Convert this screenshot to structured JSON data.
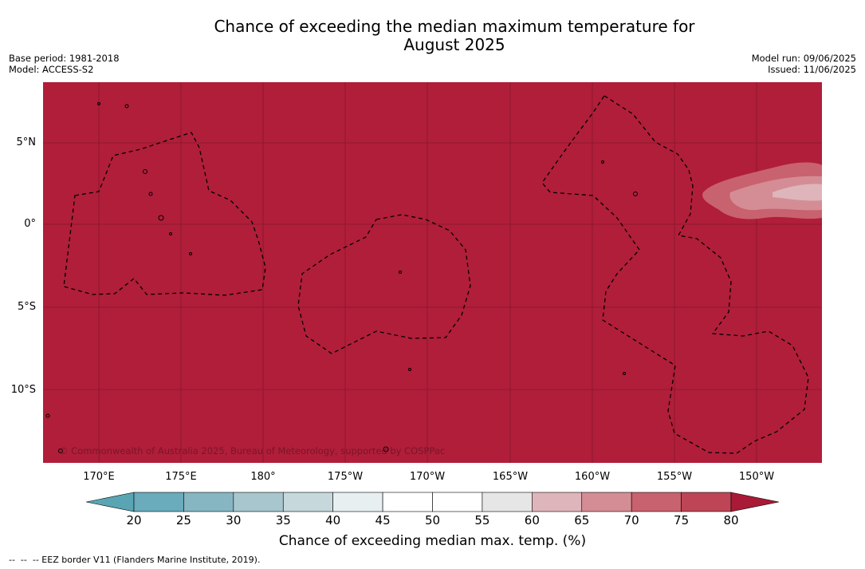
{
  "title": "Chance of exceeding the median maximum temperature for August 2025",
  "title_lines": [
    "Chance of exceeding the median maximum temperature for",
    "August 2025"
  ],
  "meta_left": [
    "Base period: 1981-2018",
    "Model: ACCESS-S2"
  ],
  "meta_right": [
    "Model run: 09/06/2025",
    "Issued: 11/06/2025"
  ],
  "map": {
    "copyright": "© Commonwealth of Australia 2025, Bureau of Meteorology, supported by COSPPac",
    "background_color": "#b01e3a",
    "lat_labels": [
      "5°N",
      "0°",
      "5°S",
      "10°S"
    ],
    "lon_labels": [
      "170°E",
      "175°E",
      "180°",
      "175°W",
      "170°W",
      "165°W",
      "160°W",
      "155°W",
      "150°W"
    ]
  },
  "colorbar": {
    "ticks": [
      "20",
      "25",
      "30",
      "35",
      "40",
      "45",
      "50",
      "55",
      "60",
      "65",
      "70",
      "75",
      "80"
    ],
    "colors": [
      "#6aabbc",
      "#87b6c3",
      "#a7c6cd",
      "#c6d8dc",
      "#e8eff1",
      "#ffffff",
      "#ffffff",
      "#e6e6e6",
      "#deb5bb",
      "#d48d95",
      "#c8626e",
      "#be4556"
    ],
    "under_color": "#5aa5b4",
    "over_color": "#a81a36",
    "label": "Chance of exceeding median max. temp. (%)"
  },
  "footnote": "--  --  -- EEZ border V11 (Flanders Marine Institute, 2019)."
}
